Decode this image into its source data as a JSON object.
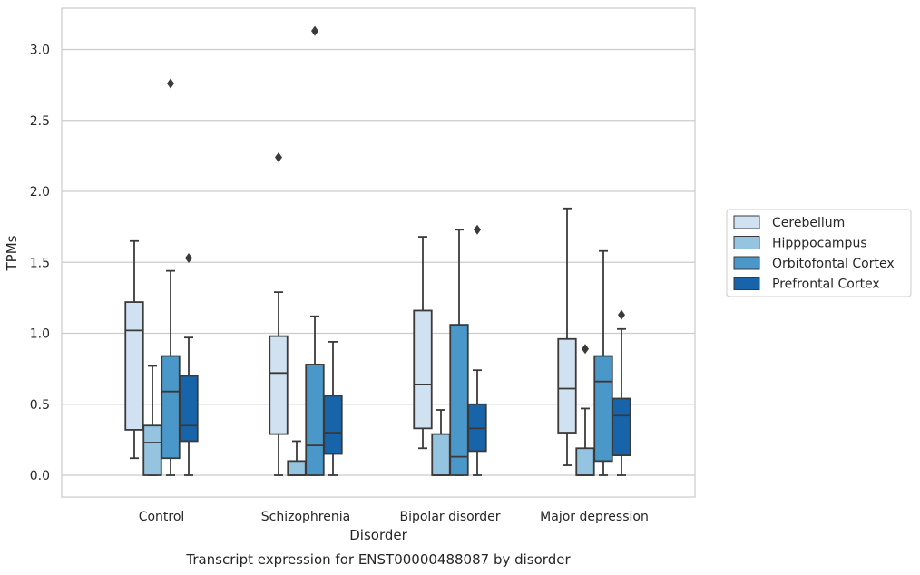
{
  "chart_data": {
    "type": "box",
    "caption": "Transcript expression for ENST00000488087 by disorder",
    "xlabel": "Disorder",
    "ylabel": "TPMs",
    "ylim": [
      -0.15,
      3.3
    ],
    "yticks": [
      "0.0",
      "0.5",
      "1.0",
      "1.5",
      "2.0",
      "2.5",
      "3.0"
    ],
    "ytick_values": [
      0,
      0.5,
      1.0,
      1.5,
      2.0,
      2.5,
      3.0
    ],
    "grid": true,
    "legend_position": "right",
    "categories": [
      "Control",
      "Schizophrenia",
      "Bipolar disorder",
      "Major depression"
    ],
    "colors": {
      "Cerebellum": "#d0e1f2",
      "Hipppocampus": "#94c4df",
      "Orbitofontal Cortex": "#4a98c9",
      "Prefrontal Cortex": "#1764ab",
      "grid": "#cccccc",
      "edge": "#3a3a3a"
    },
    "series": [
      {
        "name": "Cerebellum",
        "boxes": [
          {
            "whislo": 0.12,
            "q1": 0.32,
            "med": 1.02,
            "q3": 1.22,
            "whishi": 1.65,
            "fliers": []
          },
          {
            "whislo": 0.0,
            "q1": 0.29,
            "med": 0.72,
            "q3": 0.98,
            "whishi": 1.29,
            "fliers": [
              2.24
            ]
          },
          {
            "whislo": 0.19,
            "q1": 0.33,
            "med": 0.64,
            "q3": 1.16,
            "whishi": 1.68,
            "fliers": []
          },
          {
            "whislo": 0.07,
            "q1": 0.3,
            "med": 0.61,
            "q3": 0.96,
            "whishi": 1.88,
            "fliers": []
          }
        ]
      },
      {
        "name": "Hipppocampus",
        "boxes": [
          {
            "whislo": 0.0,
            "q1": 0.0,
            "med": 0.23,
            "q3": 0.35,
            "whishi": 0.77,
            "fliers": []
          },
          {
            "whislo": 0.0,
            "q1": 0.0,
            "med": 0.0,
            "q3": 0.1,
            "whishi": 0.24,
            "fliers": []
          },
          {
            "whislo": 0.0,
            "q1": 0.0,
            "med": 0.0,
            "q3": 0.29,
            "whishi": 0.46,
            "fliers": []
          },
          {
            "whislo": 0.0,
            "q1": 0.0,
            "med": 0.0,
            "q3": 0.19,
            "whishi": 0.47,
            "fliers": [
              0.89
            ]
          }
        ]
      },
      {
        "name": "Orbitofontal Cortex",
        "boxes": [
          {
            "whislo": 0.0,
            "q1": 0.12,
            "med": 0.59,
            "q3": 0.84,
            "whishi": 1.44,
            "fliers": [
              2.76
            ]
          },
          {
            "whislo": 0.0,
            "q1": 0.0,
            "med": 0.21,
            "q3": 0.78,
            "whishi": 1.12,
            "fliers": [
              3.13
            ]
          },
          {
            "whislo": 0.0,
            "q1": 0.0,
            "med": 0.13,
            "q3": 1.06,
            "whishi": 1.73,
            "fliers": []
          },
          {
            "whislo": 0.0,
            "q1": 0.1,
            "med": 0.66,
            "q3": 0.84,
            "whishi": 1.58,
            "fliers": []
          }
        ]
      },
      {
        "name": "Prefrontal Cortex",
        "boxes": [
          {
            "whislo": 0.0,
            "q1": 0.24,
            "med": 0.35,
            "q3": 0.7,
            "whishi": 0.97,
            "fliers": [
              1.53
            ]
          },
          {
            "whislo": 0.0,
            "q1": 0.15,
            "med": 0.3,
            "q3": 0.56,
            "whishi": 0.94,
            "fliers": []
          },
          {
            "whislo": 0.0,
            "q1": 0.17,
            "med": 0.33,
            "q3": 0.5,
            "whishi": 0.74,
            "fliers": [
              1.73
            ]
          },
          {
            "whislo": 0.0,
            "q1": 0.14,
            "med": 0.42,
            "q3": 0.54,
            "whishi": 1.03,
            "fliers": [
              1.13
            ]
          }
        ]
      }
    ]
  }
}
